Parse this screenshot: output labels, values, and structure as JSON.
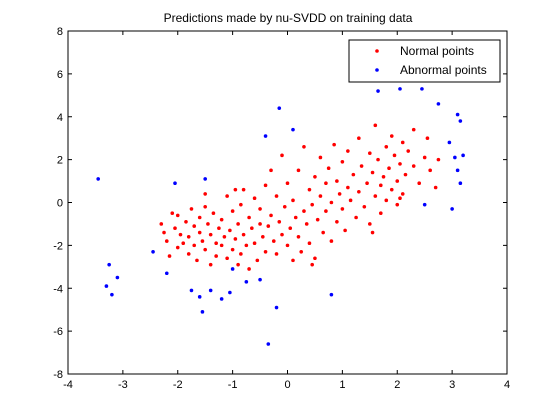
{
  "chart_data": {
    "type": "scatter",
    "title": "Predictions made by nu-SVDD on training data",
    "xlabel": "",
    "ylabel": "",
    "xlim": [
      -4,
      4
    ],
    "ylim": [
      -8,
      8
    ],
    "xticks": [
      -4,
      -3,
      -2,
      -1,
      0,
      1,
      2,
      3,
      4
    ],
    "yticks": [
      -8,
      -6,
      -4,
      -2,
      0,
      2,
      4,
      6,
      8
    ],
    "grid": false,
    "legend_position": "top-right",
    "series": [
      {
        "name": "Normal points",
        "color": "#ff0000",
        "marker": "dot",
        "points": [
          [
            -2.3,
            -1.0
          ],
          [
            -2.25,
            -1.4
          ],
          [
            -2.2,
            -1.8
          ],
          [
            -2.1,
            -0.5
          ],
          [
            -2.05,
            -1.2
          ],
          [
            -2.0,
            -2.1
          ],
          [
            -2.0,
            -0.6
          ],
          [
            -1.95,
            -1.5
          ],
          [
            -1.9,
            -1.9
          ],
          [
            -1.85,
            -0.9
          ],
          [
            -1.8,
            -2.4
          ],
          [
            -1.8,
            -1.6
          ],
          [
            -1.75,
            -0.3
          ],
          [
            -1.7,
            -1.1
          ],
          [
            -1.7,
            -2.0
          ],
          [
            -1.65,
            -2.7
          ],
          [
            -1.6,
            -1.4
          ],
          [
            -1.6,
            -0.7
          ],
          [
            -1.55,
            -1.8
          ],
          [
            -1.5,
            -2.2
          ],
          [
            -1.5,
            -0.2
          ],
          [
            -1.45,
            -1.0
          ],
          [
            -1.4,
            -2.9
          ],
          [
            -1.4,
            -1.5
          ],
          [
            -1.35,
            -0.5
          ],
          [
            -1.3,
            -1.9
          ],
          [
            -1.3,
            -2.5
          ],
          [
            -1.25,
            -1.2
          ],
          [
            -1.2,
            -0.8
          ],
          [
            -1.2,
            -2.0
          ],
          [
            -1.15,
            -1.6
          ],
          [
            -1.1,
            -2.6
          ],
          [
            -1.1,
            0.3
          ],
          [
            -1.05,
            -1.3
          ],
          [
            -1.0,
            -2.2
          ],
          [
            -1.0,
            -0.4
          ],
          [
            -0.95,
            -1.7
          ],
          [
            -0.9,
            -2.9
          ],
          [
            -0.9,
            -1.0
          ],
          [
            -0.85,
            -0.1
          ],
          [
            -0.85,
            -2.4
          ],
          [
            -0.8,
            -1.5
          ],
          [
            -0.8,
            0.6
          ],
          [
            -0.75,
            -2.0
          ],
          [
            -0.7,
            -0.7
          ],
          [
            -0.7,
            -3.1
          ],
          [
            -0.65,
            -1.2
          ],
          [
            -0.6,
            -1.9
          ],
          [
            -0.6,
            0.2
          ],
          [
            -0.55,
            -2.7
          ],
          [
            -0.5,
            -1.0
          ],
          [
            -0.5,
            -0.3
          ],
          [
            -0.45,
            -1.6
          ],
          [
            -0.4,
            -2.3
          ],
          [
            -0.4,
            0.8
          ],
          [
            -0.35,
            -1.1
          ],
          [
            -0.3,
            1.5
          ],
          [
            -0.3,
            -0.6
          ],
          [
            -0.25,
            -1.8
          ],
          [
            -0.2,
            -2.4
          ],
          [
            -0.2,
            0.3
          ],
          [
            -0.15,
            -0.9
          ],
          [
            -0.1,
            -1.5
          ],
          [
            -0.1,
            2.2
          ],
          [
            -0.05,
            -0.2
          ],
          [
            0.0,
            -2.0
          ],
          [
            0.0,
            0.9
          ],
          [
            0.05,
            -1.2
          ],
          [
            0.1,
            -2.7
          ],
          [
            0.1,
            0.1
          ],
          [
            0.15,
            -0.7
          ],
          [
            0.2,
            1.5
          ],
          [
            0.2,
            -1.6
          ],
          [
            0.25,
            -2.3
          ],
          [
            0.3,
            -0.4
          ],
          [
            0.3,
            2.6
          ],
          [
            0.35,
            -1.0
          ],
          [
            0.4,
            0.6
          ],
          [
            0.4,
            -1.9
          ],
          [
            0.45,
            -0.1
          ],
          [
            0.5,
            1.2
          ],
          [
            0.5,
            -2.6
          ],
          [
            0.55,
            -0.8
          ],
          [
            0.6,
            0.3
          ],
          [
            0.6,
            2.1
          ],
          [
            0.65,
            -1.4
          ],
          [
            0.7,
            0.9
          ],
          [
            0.7,
            -0.4
          ],
          [
            0.75,
            1.6
          ],
          [
            0.8,
            -1.8
          ],
          [
            0.8,
            0.0
          ],
          [
            0.85,
            2.7
          ],
          [
            0.9,
            -0.9
          ],
          [
            0.9,
            1.0
          ],
          [
            0.95,
            0.4
          ],
          [
            1.0,
            1.9
          ],
          [
            1.0,
            -0.3
          ],
          [
            1.05,
            -1.3
          ],
          [
            1.1,
            0.7
          ],
          [
            1.1,
            2.4
          ],
          [
            1.15,
            0.1
          ],
          [
            1.2,
            1.3
          ],
          [
            1.25,
            -0.7
          ],
          [
            1.3,
            0.5
          ],
          [
            1.3,
            3.0
          ],
          [
            1.35,
            1.7
          ],
          [
            1.4,
            -0.2
          ],
          [
            1.45,
            0.9
          ],
          [
            1.5,
            2.3
          ],
          [
            1.5,
            -1.0
          ],
          [
            1.55,
            1.4
          ],
          [
            1.6,
            0.3
          ],
          [
            1.6,
            3.6
          ],
          [
            1.65,
            2.0
          ],
          [
            1.7,
            0.8
          ],
          [
            1.7,
            -0.5
          ],
          [
            1.75,
            1.2
          ],
          [
            1.8,
            2.6
          ],
          [
            1.8,
            0.1
          ],
          [
            1.85,
            1.6
          ],
          [
            1.9,
            3.1
          ],
          [
            1.9,
            0.6
          ],
          [
            1.95,
            2.2
          ],
          [
            2.0,
            1.0
          ],
          [
            2.0,
            -0.1
          ],
          [
            2.05,
            1.8
          ],
          [
            2.1,
            2.8
          ],
          [
            2.1,
            0.4
          ],
          [
            2.15,
            1.3
          ],
          [
            2.2,
            2.4
          ],
          [
            2.3,
            3.4
          ],
          [
            2.3,
            1.7
          ],
          [
            2.4,
            0.9
          ],
          [
            2.5,
            2.1
          ],
          [
            2.55,
            3.0
          ],
          [
            2.6,
            1.5
          ],
          [
            2.7,
            0.7
          ],
          [
            2.75,
            2.0
          ],
          [
            -1.5,
            0.4
          ],
          [
            -0.95,
            0.6
          ],
          [
            0.45,
            -2.9
          ],
          [
            1.55,
            -1.4
          ],
          [
            2.05,
            0.2
          ],
          [
            -2.15,
            -2.5
          ]
        ]
      },
      {
        "name": "Abnormal points",
        "color": "#0000ff",
        "marker": "dot",
        "points": [
          [
            -3.45,
            1.1
          ],
          [
            -3.25,
            -2.9
          ],
          [
            -3.3,
            -3.9
          ],
          [
            -3.2,
            -4.3
          ],
          [
            -3.1,
            -3.5
          ],
          [
            -2.45,
            -2.3
          ],
          [
            -2.2,
            -3.3
          ],
          [
            -2.05,
            0.9
          ],
          [
            -1.75,
            -4.1
          ],
          [
            -1.6,
            -4.4
          ],
          [
            -1.55,
            -5.1
          ],
          [
            -1.4,
            -4.1
          ],
          [
            -1.5,
            1.1
          ],
          [
            -1.0,
            -3.1
          ],
          [
            -1.05,
            -4.2
          ],
          [
            -1.2,
            -4.5
          ],
          [
            -0.75,
            -3.7
          ],
          [
            -0.5,
            -3.6
          ],
          [
            -0.4,
            3.1
          ],
          [
            -0.35,
            -6.6
          ],
          [
            -0.2,
            -4.9
          ],
          [
            -0.15,
            4.4
          ],
          [
            0.1,
            3.4
          ],
          [
            0.8,
            -4.3
          ],
          [
            1.65,
            5.2
          ],
          [
            2.05,
            5.3
          ],
          [
            2.45,
            5.3
          ],
          [
            2.75,
            4.6
          ],
          [
            2.5,
            -0.1
          ],
          [
            3.0,
            -0.3
          ],
          [
            2.95,
            2.8
          ],
          [
            3.05,
            2.1
          ],
          [
            3.1,
            1.5
          ],
          [
            3.15,
            3.8
          ],
          [
            3.1,
            4.1
          ],
          [
            3.2,
            2.2
          ],
          [
            3.15,
            0.9
          ],
          [
            3.85,
            7.0
          ]
        ]
      }
    ]
  }
}
